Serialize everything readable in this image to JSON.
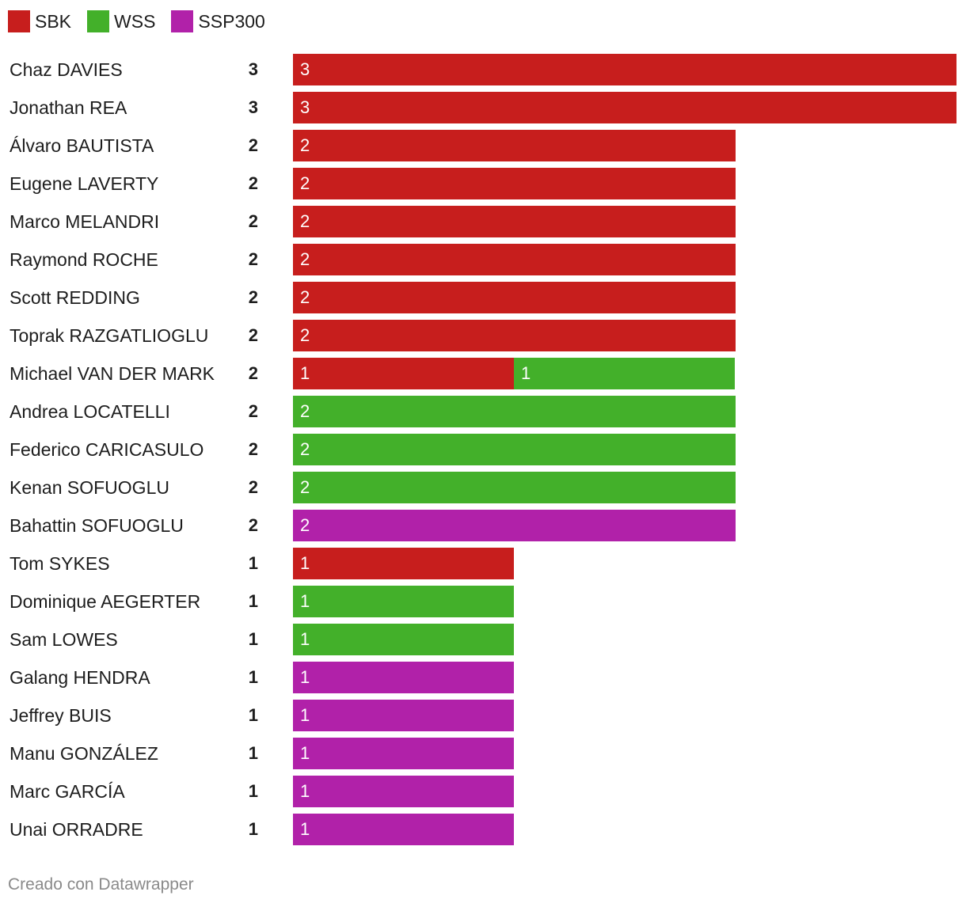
{
  "chart_data": {
    "type": "bar",
    "orientation": "horizontal",
    "stacked": true,
    "legend": {
      "placement": "top-left"
    },
    "series": [
      {
        "name": "SBK",
        "color": "#c71e1d",
        "values": [
          3,
          3,
          2,
          2,
          2,
          2,
          2,
          2,
          1,
          0,
          0,
          0,
          0,
          1,
          0,
          0,
          0,
          0,
          0,
          0,
          0
        ]
      },
      {
        "name": "WSS",
        "color": "#43b02a",
        "values": [
          0,
          0,
          0,
          0,
          0,
          0,
          0,
          0,
          1,
          2,
          2,
          2,
          0,
          0,
          1,
          1,
          0,
          0,
          0,
          0,
          0
        ]
      },
      {
        "name": "SSP300",
        "color": "#b121a9",
        "values": [
          0,
          0,
          0,
          0,
          0,
          0,
          0,
          0,
          0,
          0,
          0,
          0,
          2,
          0,
          0,
          0,
          1,
          1,
          1,
          1,
          1
        ]
      }
    ],
    "categories": [
      "Chaz DAVIES",
      "Jonathan REA",
      "Álvaro BAUTISTA",
      "Eugene LAVERTY",
      "Marco MELANDRI",
      "Raymond ROCHE",
      "Scott REDDING",
      "Toprak RAZGATLIOGLU",
      "Michael VAN DER MARK",
      "Andrea LOCATELLI",
      "Federico CARICASULO",
      "Kenan SOFUOGLU",
      "Bahattin SOFUOGLU",
      "Tom SYKES",
      "Dominique AEGERTER",
      "Sam LOWES",
      "Galang HENDRA",
      "Jeffrey BUIS",
      "Manu GONZÁLEZ",
      "Marc GARCÍA",
      "Unai ORRADRE"
    ],
    "totals": [
      "3",
      "3",
      "2",
      "2",
      "2",
      "2",
      "2",
      "2",
      "2",
      "2",
      "2",
      "2",
      "2",
      "1",
      "1",
      "1",
      "1",
      "1",
      "1",
      "1",
      "1"
    ],
    "xlim": [
      0,
      3
    ]
  },
  "footer": {
    "credit": "Creado con Datawrapper"
  }
}
